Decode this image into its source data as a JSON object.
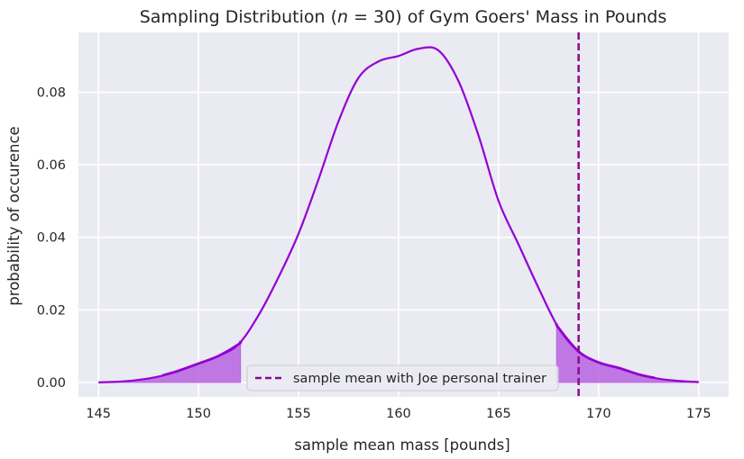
{
  "chart_data": {
    "type": "line",
    "title_parts": {
      "before": "Sampling Distribution (",
      "n_var": "n",
      "middle": " = 30",
      "after": ") of Gym Goers' Mass in Pounds"
    },
    "xlabel": "sample mean mass [pounds]",
    "ylabel": "probability of occurence",
    "xlim": [
      144,
      176.5
    ],
    "ylim": [
      -0.004,
      0.0965
    ],
    "xticks": [
      145,
      150,
      155,
      160,
      165,
      170,
      175
    ],
    "yticks": [
      0.0,
      0.02,
      0.04,
      0.06,
      0.08
    ],
    "ytick_labels": [
      "0.00",
      "0.02",
      "0.04",
      "0.06",
      "0.08"
    ],
    "grid": true,
    "background": "#eaeaf2",
    "series": [
      {
        "curve_color": "#9400d3",
        "fill_color": "#b764e0",
        "x": [
          145,
          146,
          147,
          148,
          149,
          150,
          151,
          152,
          153,
          154,
          155,
          156,
          157,
          158,
          159,
          160,
          161,
          162,
          163,
          164,
          165,
          166,
          167,
          168,
          169,
          170,
          171,
          172,
          173,
          174,
          175
        ],
        "y": [
          0.0,
          0.0002,
          0.0007,
          0.0016,
          0.0032,
          0.0052,
          0.0073,
          0.0105,
          0.0185,
          0.029,
          0.041,
          0.056,
          0.072,
          0.084,
          0.0885,
          0.09,
          0.092,
          0.0915,
          0.083,
          0.068,
          0.05,
          0.038,
          0.026,
          0.015,
          0.0085,
          0.0055,
          0.004,
          0.0022,
          0.001,
          0.0004,
          0.0001
        ]
      }
    ],
    "tails": [
      {
        "from": 145,
        "to": 152.1
      },
      {
        "from": 167.9,
        "to": 175
      }
    ],
    "bold_lines": [
      {
        "from": 148.2,
        "to": 152.1
      },
      {
        "from": 167.9,
        "to": 172.8
      }
    ],
    "vline": {
      "x": 169.0,
      "color": "#8b0a8b",
      "style": "dashed",
      "label": "sample mean with Joe personal trainer"
    },
    "legend": {
      "placement": "bottom-center"
    }
  }
}
